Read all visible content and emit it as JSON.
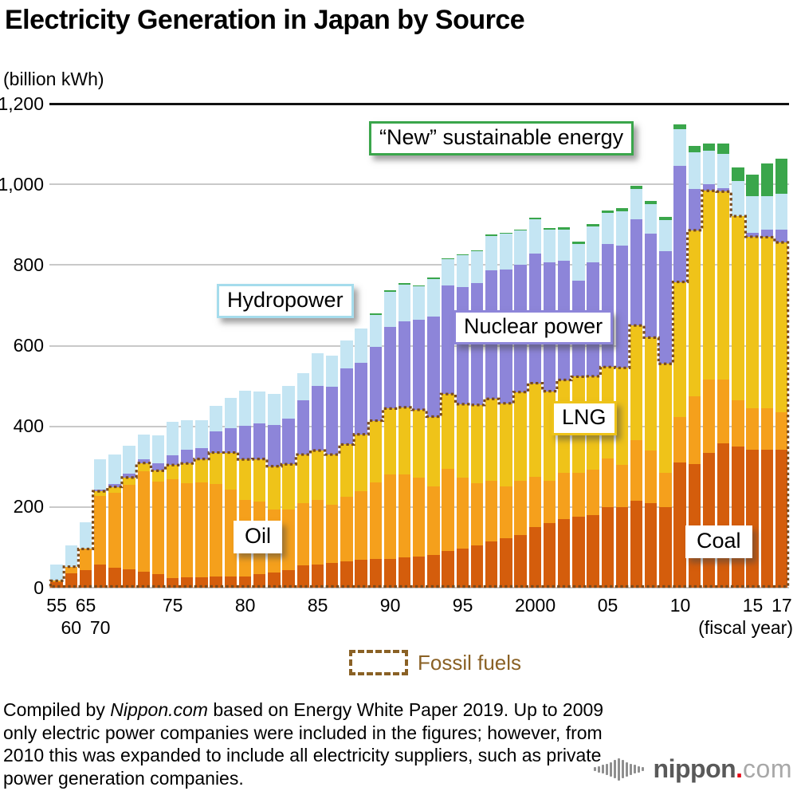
{
  "title": "Electricity Generation in Japan by Source",
  "unit_label": "(billion kWh)",
  "axis": {
    "y_ticks": [
      {
        "label": "0",
        "value": 0
      },
      {
        "label": "200",
        "value": 200
      },
      {
        "label": "400",
        "value": 400
      },
      {
        "label": "600",
        "value": 600
      },
      {
        "label": "800",
        "value": 800
      },
      {
        "label": "1,000",
        "value": 1000
      },
      {
        "label": "1,200",
        "value": 1200
      }
    ],
    "fiscal_note": "(fiscal year)"
  },
  "annotations": {
    "new_energy": "“New” sustainable energy",
    "hydropower": "Hydropower",
    "nuclear": "Nuclear power",
    "lng": "LNG",
    "oil": "Oil",
    "coal": "Coal"
  },
  "legend": {
    "fossil_label": "Fossil fuels",
    "outline_color": "#8a6125"
  },
  "footer": {
    "pre": "Compiled by ",
    "brand": "Nippon.com",
    "post": " based on Energy White Paper 2019. Up to 2009 only electric power companies were included in the figures; however, from 2010 this was expanded to include all electricity suppliers, such as private power generation companies."
  },
  "logo": {
    "name": "nippon",
    "dot": ".",
    "tld": "com"
  },
  "chart_data": {
    "type": "bar",
    "stacked": true,
    "title": "Electricity Generation in Japan by Source",
    "ylabel": "(billion kWh)",
    "xlabel": "(fiscal year)",
    "ylim": [
      0,
      1200
    ],
    "grid": true,
    "note": "Values in billion kWh; up to 2009 electric power companies only, from 2010 all electricity suppliers",
    "years": [
      1955,
      1960,
      1965,
      1970,
      1971,
      1972,
      1973,
      1974,
      1975,
      1976,
      1977,
      1978,
      1979,
      1980,
      1981,
      1982,
      1983,
      1984,
      1985,
      1986,
      1987,
      1988,
      1989,
      1990,
      1991,
      1992,
      1993,
      1994,
      1995,
      1996,
      1997,
      1998,
      1999,
      2000,
      2001,
      2002,
      2003,
      2004,
      2005,
      2006,
      2007,
      2008,
      2009,
      2010,
      2011,
      2012,
      2013,
      2014,
      2015,
      2016,
      2017
    ],
    "x_ticks": [
      {
        "label": "55",
        "bar": 0,
        "row": 1
      },
      {
        "label": "60",
        "bar": 1,
        "row": 2
      },
      {
        "label": "65",
        "bar": 2,
        "row": 1
      },
      {
        "label": "70",
        "bar": 3,
        "row": 2
      },
      {
        "label": "75",
        "bar": 8,
        "row": 1
      },
      {
        "label": "80",
        "bar": 13,
        "row": 1
      },
      {
        "label": "85",
        "bar": 18,
        "row": 1
      },
      {
        "label": "90",
        "bar": 23,
        "row": 1
      },
      {
        "label": "95",
        "bar": 28,
        "row": 1
      },
      {
        "label": "2000",
        "bar": 33,
        "row": 1
      },
      {
        "label": "05",
        "bar": 38,
        "row": 1
      },
      {
        "label": "10",
        "bar": 43,
        "row": 1
      },
      {
        "label": "15",
        "bar": 48,
        "row": 1
      },
      {
        "label": "17",
        "bar": 50,
        "row": 1
      }
    ],
    "series": [
      {
        "name": "Coal",
        "color": "#d45d0c",
        "fossil": true,
        "values": [
          13,
          36,
          44,
          57,
          50,
          45,
          40,
          33,
          24,
          25,
          26,
          27,
          28,
          28,
          34,
          38,
          44,
          55,
          58,
          62,
          65,
          70,
          72,
          72,
          75,
          78,
          82,
          90,
          97,
          105,
          115,
          122,
          130,
          150,
          160,
          170,
          175,
          180,
          200,
          200,
          215,
          210,
          200,
          310,
          307,
          334,
          357,
          349,
          342,
          343,
          342
        ]
      },
      {
        "name": "Oil",
        "color": "#f5a01c",
        "fossil": true,
        "values": [
          4,
          16,
          52,
          170,
          185,
          210,
          248,
          230,
          245,
          235,
          235,
          230,
          215,
          190,
          180,
          155,
          150,
          155,
          160,
          143,
          160,
          170,
          190,
          208,
          205,
          195,
          170,
          205,
          175,
          155,
          150,
          130,
          135,
          125,
          105,
          115,
          110,
          112,
          120,
          105,
          150,
          130,
          85,
          114,
          167,
          183,
          160,
          116,
          103,
          101,
          92
        ]
      },
      {
        "name": "LNG",
        "color": "#efc319",
        "fossil": true,
        "values": [
          0,
          0,
          0,
          12,
          15,
          18,
          21,
          27,
          35,
          48,
          58,
          78,
          92,
          100,
          105,
          108,
          112,
          120,
          122,
          125,
          130,
          140,
          152,
          164,
          167,
          168,
          172,
          185,
          183,
          193,
          203,
          205,
          220,
          232,
          222,
          230,
          238,
          232,
          227,
          240,
          285,
          280,
          270,
          334,
          412,
          467,
          465,
          456,
          425,
          425,
          422
        ]
      },
      {
        "name": "Nuclear power",
        "color": "#8d85d9",
        "fossil": false,
        "values": [
          0,
          0,
          0,
          5,
          8,
          9,
          10,
          19,
          25,
          34,
          28,
          53,
          61,
          83,
          88,
          102,
          114,
          134,
          160,
          168,
          188,
          178,
          183,
          202,
          213,
          223,
          249,
          269,
          291,
          302,
          319,
          332,
          316,
          322,
          320,
          295,
          238,
          282,
          305,
          303,
          264,
          258,
          280,
          288,
          102,
          16,
          9,
          0,
          9,
          18,
          31
        ]
      },
      {
        "name": "Hydropower",
        "color": "#c4e5f3",
        "fossil": false,
        "values": [
          40,
          52,
          67,
          74,
          72,
          70,
          60,
          69,
          83,
          73,
          68,
          62,
          74,
          88,
          80,
          77,
          80,
          68,
          82,
          77,
          70,
          85,
          80,
          88,
          92,
          83,
          93,
          65,
          78,
          79,
          85,
          88,
          84,
          84,
          80,
          78,
          92,
          90,
          77,
          86,
          75,
          73,
          76,
          91,
          92,
          84,
          85,
          87,
          91,
          84,
          90
        ]
      },
      {
        "name": "“New” sustainable energy",
        "color": "#3aa64b",
        "fossil": false,
        "values": [
          0,
          0,
          0,
          0,
          0,
          0,
          0,
          0,
          0,
          0,
          0,
          0,
          0,
          0,
          0,
          0,
          0,
          0,
          0,
          0,
          0,
          0,
          1,
          1,
          1,
          1,
          2,
          2,
          2,
          2,
          3,
          3,
          3,
          4,
          4,
          5,
          5,
          6,
          6,
          7,
          8,
          8,
          9,
          12,
          15,
          18,
          25,
          33,
          54,
          80,
          86
        ]
      }
    ],
    "fossil_outline": {
      "label": "Fossil fuels",
      "color": "#7a4a1c",
      "includes": [
        "Coal",
        "Oil",
        "LNG"
      ]
    }
  }
}
